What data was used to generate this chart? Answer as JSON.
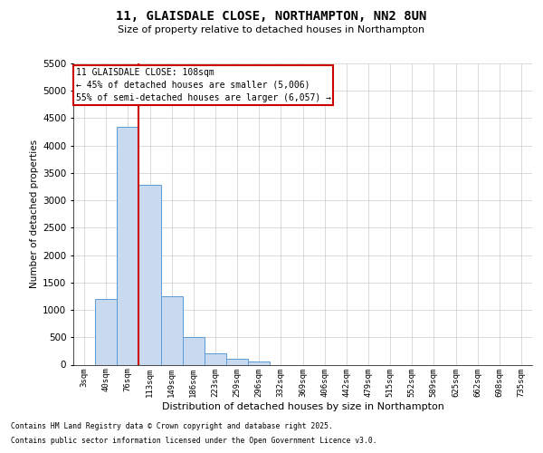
{
  "title1": "11, GLAISDALE CLOSE, NORTHAMPTON, NN2 8UN",
  "title2": "Size of property relative to detached houses in Northampton",
  "xlabel": "Distribution of detached houses by size in Northampton",
  "ylabel": "Number of detached properties",
  "categories": [
    "3sqm",
    "40sqm",
    "76sqm",
    "113sqm",
    "149sqm",
    "186sqm",
    "223sqm",
    "259sqm",
    "296sqm",
    "332sqm",
    "369sqm",
    "406sqm",
    "442sqm",
    "479sqm",
    "515sqm",
    "552sqm",
    "589sqm",
    "625sqm",
    "662sqm",
    "698sqm",
    "735sqm"
  ],
  "values": [
    0,
    1200,
    4350,
    3280,
    1250,
    500,
    200,
    100,
    60,
    0,
    0,
    0,
    0,
    0,
    0,
    0,
    0,
    0,
    0,
    0,
    0
  ],
  "bar_color": "#c9d9f0",
  "bar_edge_color": "#5b9bd5",
  "grid_color": "#cccccc",
  "vline_x": 2.5,
  "vline_color": "#cc0000",
  "ylim": [
    0,
    5500
  ],
  "yticks": [
    0,
    500,
    1000,
    1500,
    2000,
    2500,
    3000,
    3500,
    4000,
    4500,
    5000,
    5500
  ],
  "ann_line1": "11 GLAISDALE CLOSE: 108sqm",
  "ann_line2": "← 45% of detached houses are smaller (5,006)",
  "ann_line3": "55% of semi-detached houses are larger (6,057) →",
  "ann_box_edge_color": "#cc0000",
  "footer1": "Contains HM Land Registry data © Crown copyright and database right 2025.",
  "footer2": "Contains public sector information licensed under the Open Government Licence v3.0."
}
